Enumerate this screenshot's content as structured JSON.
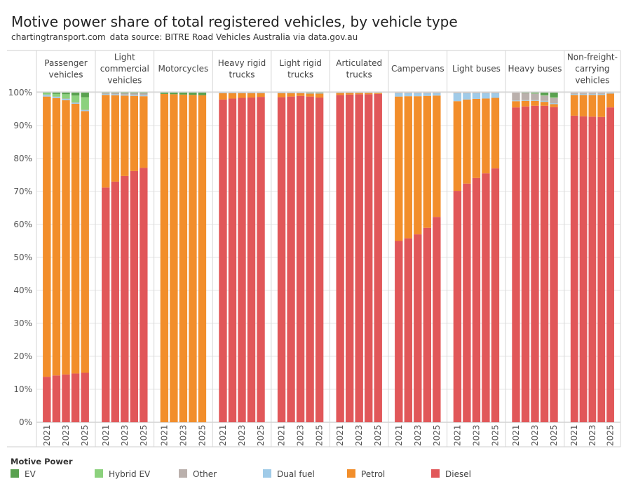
{
  "title": "Motive power share of total registered vehicles, by vehicle type",
  "subtitle": {
    "source_site": "chartingtransport.com",
    "data_source": "data source: BITRE Road Vehicles Australia via data.gov.au"
  },
  "legend": {
    "title": "Motive Power",
    "items": [
      {
        "name": "EV",
        "color": "#59a14f"
      },
      {
        "name": "Hybrid EV",
        "color": "#8cd17d"
      },
      {
        "name": "Other",
        "color": "#bab0ac"
      },
      {
        "name": "Dual fuel",
        "color": "#a0cbe8"
      },
      {
        "name": "Petrol",
        "color": "#f28e2b"
      },
      {
        "name": "Diesel",
        "color": "#e15759"
      }
    ]
  },
  "chart_data": {
    "type": "bar",
    "stacked": true,
    "title": "Motive power share of total registered vehicles, by vehicle type",
    "ylim": [
      0,
      100
    ],
    "y_ticks": [
      "0%",
      "10%",
      "20%",
      "30%",
      "40%",
      "50%",
      "60%",
      "70%",
      "80%",
      "90%",
      "100%"
    ],
    "x_tick_labels": [
      "2021",
      "2023",
      "2025"
    ],
    "years": [
      2021,
      2022,
      2023,
      2024,
      2025
    ],
    "stack_order": [
      "Diesel",
      "Petrol",
      "Dual fuel",
      "Other",
      "Hybrid EV",
      "EV"
    ],
    "panels": [
      {
        "label": [
          "Passenger",
          "vehicles"
        ],
        "series": {
          "Diesel": [
            13.8,
            14.2,
            14.5,
            14.8,
            15.0
          ],
          "Petrol": [
            85.0,
            84.1,
            83.2,
            81.8,
            79.4
          ],
          "Dual fuel": [
            0.5,
            0.4,
            0.4,
            0.3,
            0.3
          ],
          "Other": [
            0.1,
            0.1,
            0.1,
            0.1,
            0.1
          ],
          "Hybrid EV": [
            0.5,
            0.8,
            1.3,
            2.1,
            3.8
          ],
          "EV": [
            0.1,
            0.4,
            0.5,
            0.9,
            1.4
          ]
        }
      },
      {
        "label": [
          "Light",
          "commercial",
          "vehicles"
        ],
        "series": {
          "Diesel": [
            71.2,
            73.0,
            74.7,
            76.2,
            77.2
          ],
          "Petrol": [
            28.1,
            26.2,
            24.4,
            22.8,
            21.7
          ],
          "Dual fuel": [
            0.3,
            0.3,
            0.3,
            0.3,
            0.3
          ],
          "Other": [
            0.3,
            0.4,
            0.4,
            0.5,
            0.6
          ],
          "Hybrid EV": [
            0.0,
            0.0,
            0.0,
            0.0,
            0.0
          ],
          "EV": [
            0.1,
            0.1,
            0.2,
            0.2,
            0.2
          ]
        }
      },
      {
        "label": [
          "Motorcycles"
        ],
        "series": {
          "Diesel": [
            0.0,
            0.0,
            0.0,
            0.0,
            0.0
          ],
          "Petrol": [
            99.6,
            99.5,
            99.4,
            99.3,
            99.2
          ],
          "Dual fuel": [
            0.0,
            0.0,
            0.0,
            0.0,
            0.0
          ],
          "Other": [
            0.0,
            0.0,
            0.0,
            0.0,
            0.0
          ],
          "Hybrid EV": [
            0.0,
            0.0,
            0.0,
            0.0,
            0.0
          ],
          "EV": [
            0.4,
            0.5,
            0.6,
            0.7,
            0.8
          ]
        }
      },
      {
        "label": [
          "Heavy rigid",
          "trucks"
        ],
        "series": {
          "Diesel": [
            97.9,
            98.2,
            98.4,
            98.5,
            98.7
          ],
          "Petrol": [
            1.9,
            1.6,
            1.4,
            1.3,
            1.1
          ],
          "Dual fuel": [
            0.1,
            0.1,
            0.1,
            0.1,
            0.1
          ],
          "Other": [
            0.1,
            0.1,
            0.1,
            0.1,
            0.1
          ],
          "Hybrid EV": [
            0.0,
            0.0,
            0.0,
            0.0,
            0.0
          ],
          "EV": [
            0.0,
            0.0,
            0.0,
            0.0,
            0.0
          ]
        }
      },
      {
        "label": [
          "Light rigid",
          "trucks"
        ],
        "series": {
          "Diesel": [
            98.6,
            98.8,
            99.0,
            98.8,
            98.5
          ],
          "Petrol": [
            1.2,
            1.0,
            0.8,
            0.9,
            1.2
          ],
          "Dual fuel": [
            0.1,
            0.1,
            0.1,
            0.1,
            0.1
          ],
          "Other": [
            0.1,
            0.1,
            0.1,
            0.1,
            0.1
          ],
          "Hybrid EV": [
            0.0,
            0.0,
            0.0,
            0.0,
            0.0
          ],
          "EV": [
            0.0,
            0.0,
            0.0,
            0.1,
            0.1
          ]
        }
      },
      {
        "label": [
          "Articulated",
          "trucks"
        ],
        "series": {
          "Diesel": [
            99.3,
            99.4,
            99.5,
            99.5,
            99.6
          ],
          "Petrol": [
            0.6,
            0.5,
            0.4,
            0.4,
            0.3
          ],
          "Dual fuel": [
            0.1,
            0.1,
            0.1,
            0.1,
            0.1
          ],
          "Other": [
            0.0,
            0.0,
            0.0,
            0.0,
            0.0
          ],
          "Hybrid EV": [
            0.0,
            0.0,
            0.0,
            0.0,
            0.0
          ],
          "EV": [
            0.0,
            0.0,
            0.0,
            0.0,
            0.0
          ]
        }
      },
      {
        "label": [
          "Campervans"
        ],
        "series": {
          "Diesel": [
            55.0,
            55.8,
            57.0,
            59.0,
            62.3
          ],
          "Petrol": [
            43.8,
            43.1,
            41.9,
            40.0,
            36.8
          ],
          "Dual fuel": [
            1.0,
            0.9,
            0.9,
            0.8,
            0.7
          ],
          "Other": [
            0.2,
            0.2,
            0.2,
            0.2,
            0.2
          ],
          "Hybrid EV": [
            0.0,
            0.0,
            0.0,
            0.0,
            0.0
          ],
          "EV": [
            0.0,
            0.0,
            0.0,
            0.0,
            0.0
          ]
        }
      },
      {
        "label": [
          "Light buses"
        ],
        "series": {
          "Diesel": [
            70.2,
            72.4,
            74.1,
            75.5,
            77.0
          ],
          "Petrol": [
            27.2,
            25.5,
            24.0,
            22.7,
            21.4
          ],
          "Dual fuel": [
            2.4,
            1.9,
            1.7,
            1.6,
            1.4
          ],
          "Other": [
            0.2,
            0.2,
            0.2,
            0.2,
            0.2
          ],
          "Hybrid EV": [
            0.0,
            0.0,
            0.0,
            0.0,
            0.0
          ],
          "EV": [
            0.0,
            0.0,
            0.0,
            0.0,
            0.0
          ]
        }
      },
      {
        "label": [
          "Heavy buses"
        ],
        "series": {
          "Diesel": [
            95.5,
            95.8,
            96.0,
            96.0,
            95.6
          ],
          "Petrol": [
            1.9,
            1.7,
            1.5,
            1.2,
            0.9
          ],
          "Dual fuel": [
            0.2,
            0.2,
            0.2,
            0.3,
            0.3
          ],
          "Other": [
            2.4,
            2.2,
            2.0,
            1.6,
            1.6
          ],
          "Hybrid EV": [
            0.0,
            0.0,
            0.1,
            0.1,
            0.2
          ],
          "EV": [
            0.0,
            0.1,
            0.2,
            0.8,
            1.4
          ]
        }
      },
      {
        "label": [
          "Non-freight-",
          "carrying",
          "vehicles"
        ],
        "series": {
          "Diesel": [
            93.0,
            92.8,
            92.7,
            92.6,
            95.5
          ],
          "Petrol": [
            6.3,
            6.5,
            6.6,
            6.7,
            4.2
          ],
          "Dual fuel": [
            0.3,
            0.3,
            0.3,
            0.3,
            0.2
          ],
          "Other": [
            0.4,
            0.4,
            0.4,
            0.4,
            0.1
          ],
          "Hybrid EV": [
            0.0,
            0.0,
            0.0,
            0.0,
            0.0
          ],
          "EV": [
            0.0,
            0.0,
            0.0,
            0.0,
            0.0
          ]
        }
      }
    ]
  }
}
